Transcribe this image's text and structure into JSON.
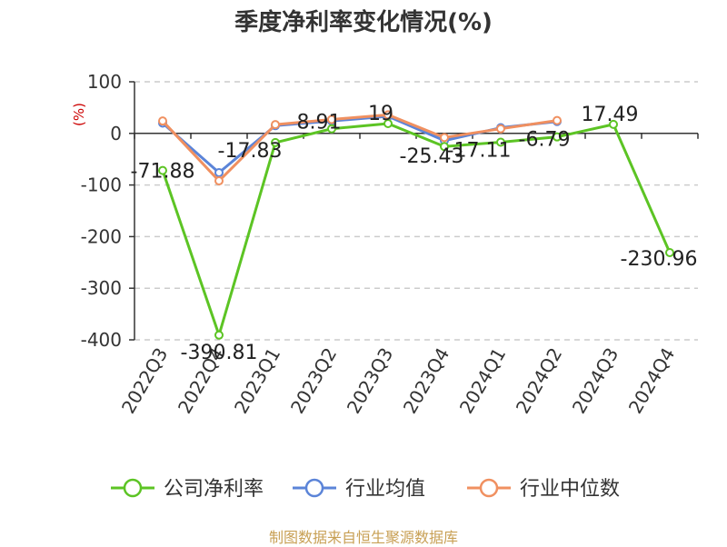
{
  "title": "季度净利率变化情况(%)",
  "source_note": "制图数据来自恒生聚源数据库",
  "colors": {
    "company": "#5cc424",
    "industry_avg": "#5b84d8",
    "industry_median": "#f09060",
    "unit": "#cc0000",
    "source": "#c8a055"
  },
  "chart_data": {
    "type": "line",
    "title": "季度净利率变化情况(%)",
    "ylabel": "(%)",
    "xlabel": "",
    "ylim": [
      -400,
      100
    ],
    "yticks": [
      100,
      0,
      -100,
      -200,
      -300,
      -400
    ],
    "grid": true,
    "legend_position": "bottom",
    "categories": [
      "2022Q3",
      "2022Q4",
      "2023Q1",
      "2023Q2",
      "2023Q3",
      "2023Q4",
      "2024Q1",
      "2024Q2",
      "2024Q3",
      "2024Q4"
    ],
    "series": [
      {
        "name": "公司净利率",
        "values": [
          -71.88,
          -390.81,
          -17.83,
          8.91,
          19,
          -25.43,
          -17.11,
          -6.79,
          17.49,
          -230.96
        ],
        "labels": [
          "-71.88",
          "-390.81",
          "-17.83",
          "8.91",
          "19",
          "-25.43",
          "-17.11",
          "-6.79",
          "17.49",
          "-230.96"
        ]
      },
      {
        "name": "行业均值",
        "values": [
          20,
          -76,
          15,
          24,
          33,
          -14,
          11,
          23,
          null,
          null
        ]
      },
      {
        "name": "行业中位数",
        "values": [
          24,
          -92,
          17,
          27,
          36,
          -8,
          9,
          25,
          null,
          null
        ]
      }
    ]
  }
}
